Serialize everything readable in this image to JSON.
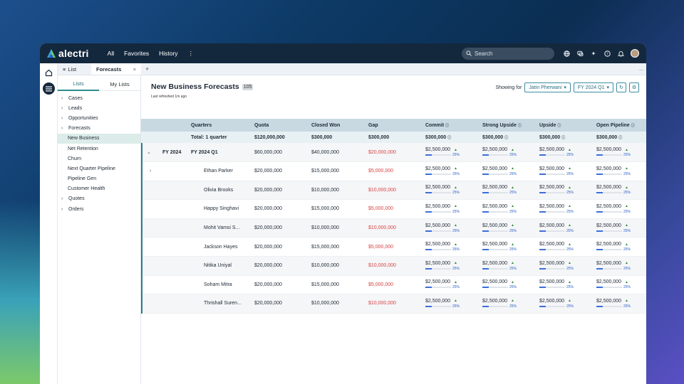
{
  "app": {
    "name": "alectri"
  },
  "topnav": {
    "items": [
      "All",
      "Favorites",
      "History"
    ],
    "more": "⋮"
  },
  "search": {
    "placeholder": "Search"
  },
  "tabs": {
    "list_label": "List",
    "active_label": "Forecasts",
    "close": "×",
    "add": "+",
    "more": "..."
  },
  "sidebar": {
    "tabs": [
      "Lists",
      "My Lists"
    ],
    "items": [
      {
        "label": "Cases",
        "expandable": true,
        "child": false
      },
      {
        "label": "Leads",
        "expandable": true,
        "child": false
      },
      {
        "label": "Opportunities",
        "expandable": true,
        "child": false
      },
      {
        "label": "Forecasts",
        "expandable": true,
        "child": false
      },
      {
        "label": "New Business",
        "expandable": false,
        "child": true,
        "selected": true
      },
      {
        "label": "Net Retention",
        "expandable": false,
        "child": true
      },
      {
        "label": "Churn",
        "expandable": false,
        "child": true
      },
      {
        "label": "Next Quarter Pipeline",
        "expandable": false,
        "child": true
      },
      {
        "label": "Pipeline Gen",
        "expandable": false,
        "child": true
      },
      {
        "label": "Customer Health",
        "expandable": false,
        "child": true
      },
      {
        "label": "Quotes",
        "expandable": true,
        "child": false
      },
      {
        "label": "Orders",
        "expandable": true,
        "child": false
      }
    ]
  },
  "page": {
    "title": "New Business Forecasts",
    "count": "105",
    "refreshed": "Last refreshed 1m ago",
    "showing_label": "Showing for",
    "user_filter": "Jatin Pherwani",
    "period_filter": "FY 2024 Q1"
  },
  "table": {
    "headers": [
      "Quarters",
      "Quota",
      "Closed Won",
      "Gap",
      "Commit",
      "Strong Upside",
      "Upside",
      "Open Pipeline"
    ],
    "total": {
      "label": "Total: 1 quarter",
      "quota": "$120,000,000",
      "closed_won": "$300,000",
      "gap": "$300,000",
      "commit": "$300,000",
      "strong_upside": "$300,000",
      "upside": "$300,000",
      "open_pipeline": "$300,000"
    },
    "fy": {
      "prefix": "FY 2024",
      "label": "FY 2024 Q1",
      "quota": "$60,000,000",
      "closed_won": "$40,000,000",
      "gap": "$20,000,000"
    },
    "metric_value": "$2,500,000",
    "metric_pct": "25%",
    "metric_fraction": 0.25,
    "rows": [
      {
        "name": "Ethan Parker",
        "quota": "$20,000,000",
        "closed_won": "$15,000,000",
        "gap": "$5,000,000"
      },
      {
        "name": "Olivia Brooks",
        "quota": "$20,000,000",
        "closed_won": "$10,000,000",
        "gap": "$10,000,000"
      },
      {
        "name": "Happy Singhavi",
        "quota": "$20,000,000",
        "closed_won": "$15,000,000",
        "gap": "$5,000,000"
      },
      {
        "name": "Mohit Vamsi S...",
        "quota": "$20,000,000",
        "closed_won": "$10,000,000",
        "gap": "$10,000,000"
      },
      {
        "name": "Jackson Hayes",
        "quota": "$20,000,000",
        "closed_won": "$15,000,000",
        "gap": "$5,000,000"
      },
      {
        "name": "Nitika Uniyal",
        "quota": "$20,000,000",
        "closed_won": "$10,000,000",
        "gap": "$10,000,000"
      },
      {
        "name": "Soham Mitra",
        "quota": "$20,000,000",
        "closed_won": "$15,000,000",
        "gap": "$5,000,000"
      },
      {
        "name": "Thrishall Suren...",
        "quota": "$20,000,000",
        "closed_won": "$10,000,000",
        "gap": "$10,000,000"
      }
    ]
  },
  "colors": {
    "accent": "#2e7d8a",
    "topbar": "#14283d",
    "gap_red": "#d64545",
    "progress": "#3b6fd8"
  },
  "icons": [
    "logo-icon",
    "search-icon",
    "globe-icon",
    "chat-icon",
    "sparkle-icon",
    "help-icon",
    "bell-icon",
    "home-icon",
    "menu-icon",
    "refresh-icon",
    "settings-icon"
  ]
}
